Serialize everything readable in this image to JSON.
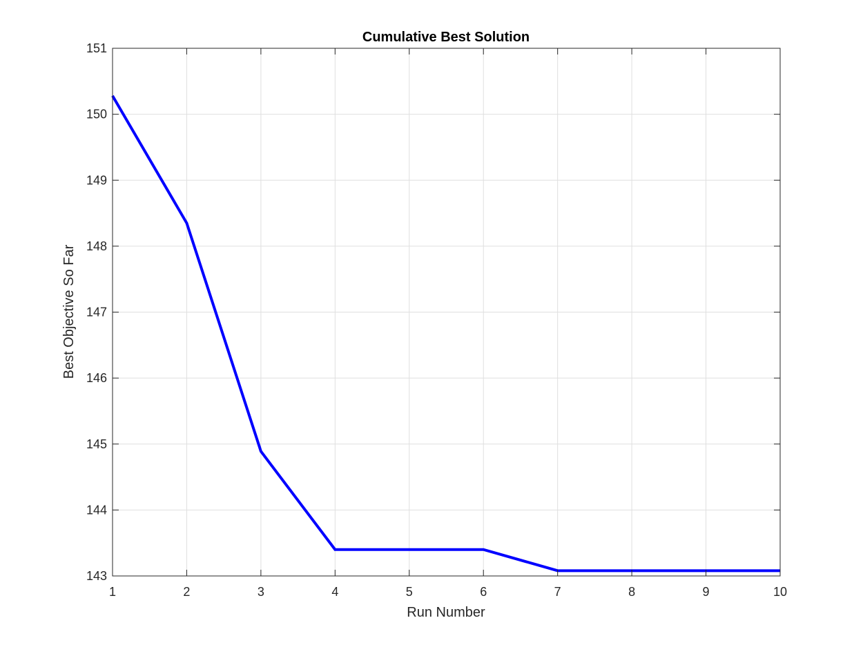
{
  "chart_data": {
    "type": "line",
    "title": "Cumulative Best Solution",
    "xlabel": "Run Number",
    "ylabel": "Best Objective So Far",
    "xlim": [
      1,
      10
    ],
    "ylim": [
      143,
      151
    ],
    "xticks": [
      "1",
      "2",
      "3",
      "4",
      "5",
      "6",
      "7",
      "8",
      "9",
      "10"
    ],
    "yticks": [
      "143",
      "144",
      "145",
      "146",
      "147",
      "148",
      "149",
      "150",
      "151"
    ],
    "grid": true,
    "series": [
      {
        "x": [
          1,
          2,
          3,
          4,
          5,
          6,
          7,
          8,
          9,
          10
        ],
        "values": [
          150.28,
          148.35,
          144.89,
          143.4,
          143.4,
          143.4,
          143.08,
          143.08,
          143.08,
          143.08
        ],
        "color": "#0000ff"
      }
    ]
  }
}
